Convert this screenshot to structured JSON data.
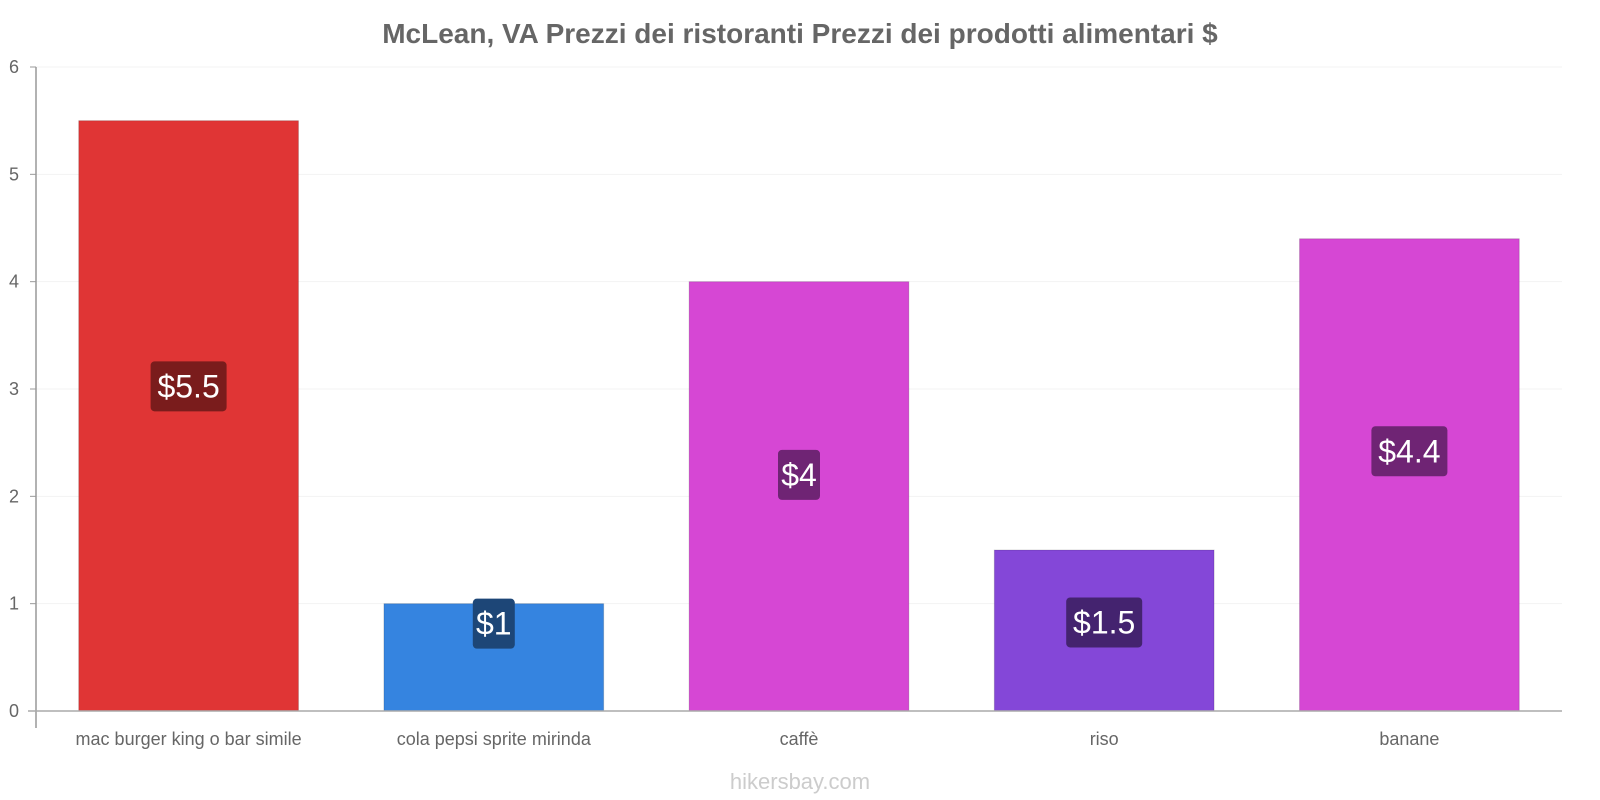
{
  "chart_data": {
    "type": "bar",
    "title": "McLean, VA Prezzi dei ristoranti Prezzi dei prodotti alimentari $",
    "categories": [
      "mac burger king o bar simile",
      "cola pepsi sprite mirinda",
      "caffè",
      "riso",
      "banane"
    ],
    "values": [
      5.5,
      1,
      4,
      1.5,
      4.4
    ],
    "value_labels": [
      "$5.5",
      "$1",
      "$4",
      "$1.5",
      "$4.4"
    ],
    "colors": [
      "#e03535",
      "#3584e0",
      "#d647d4",
      "#8447d8",
      "#d647d4"
    ],
    "label_bg_colors": [
      "#7a1c1c",
      "#1d4677",
      "#6f2474",
      "#44236f",
      "#6f2474"
    ],
    "ylim": [
      0,
      6
    ],
    "yticks": [
      0,
      1,
      2,
      3,
      4,
      5,
      6
    ],
    "xlabel": "",
    "ylabel": "",
    "grid": true
  },
  "watermark": "hikersbay.com"
}
